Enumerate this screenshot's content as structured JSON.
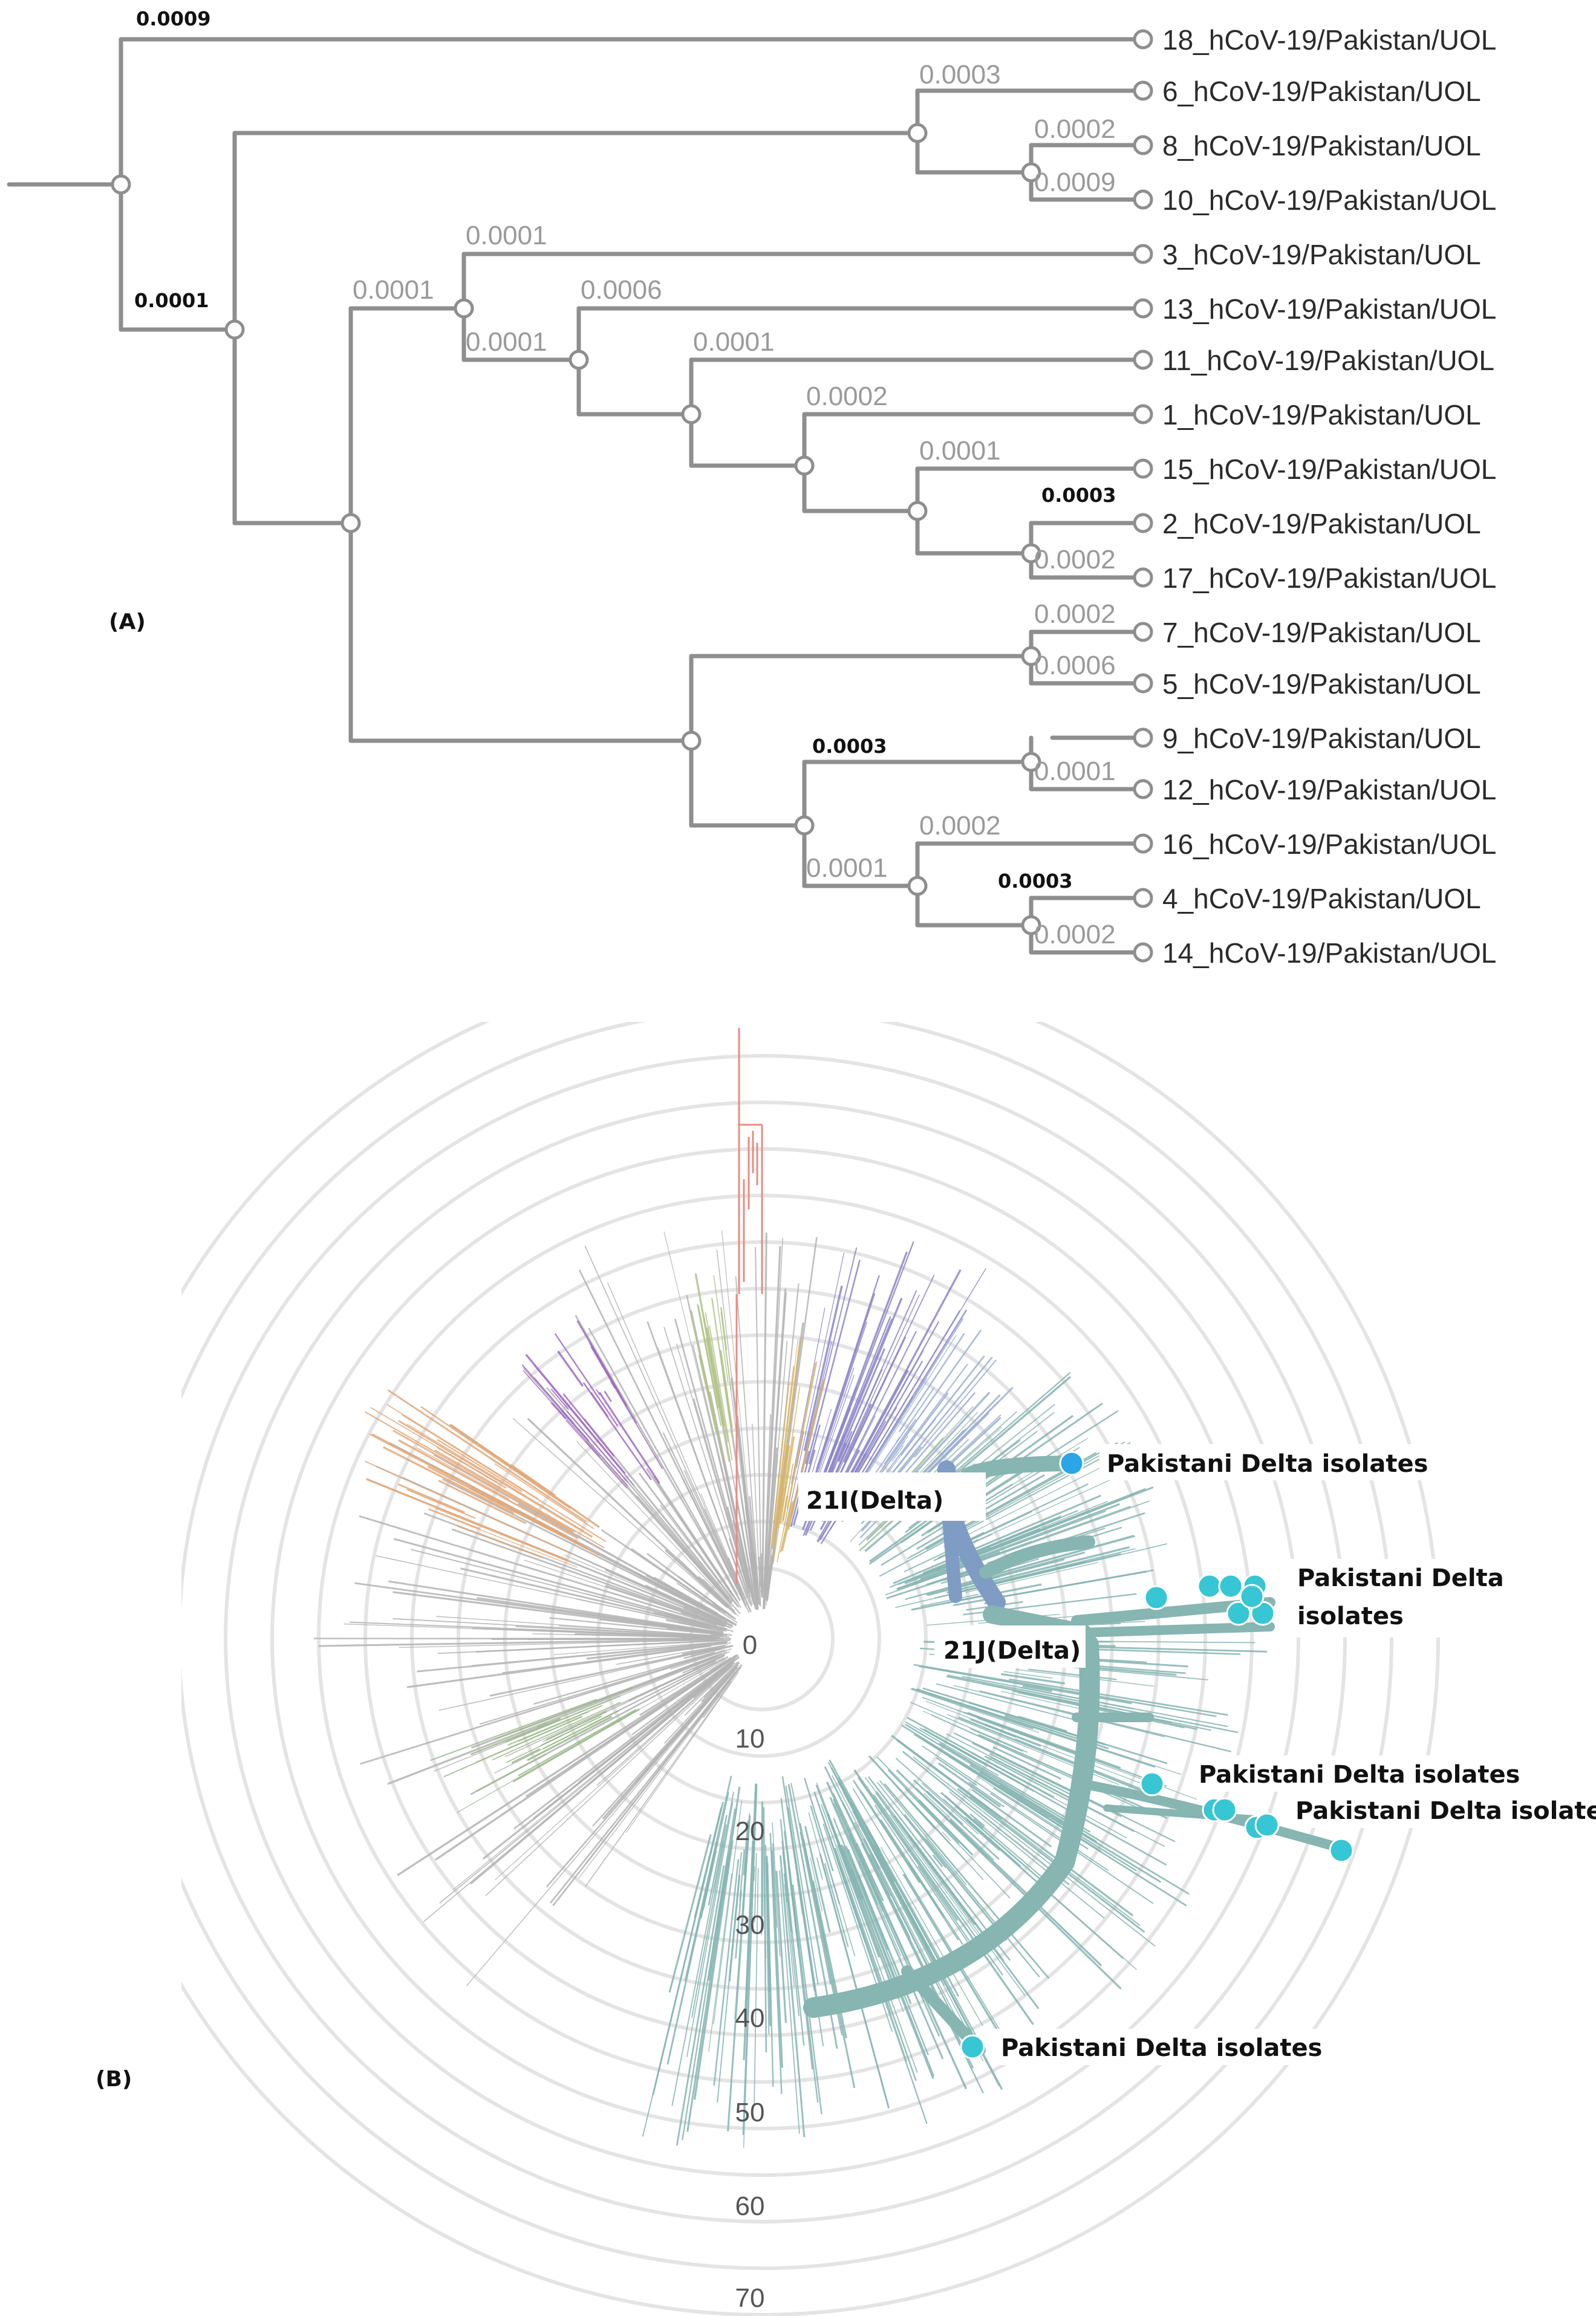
{
  "panel_a": {
    "label": "(A)",
    "tips": [
      "18_hCoV-19/Pakistan/UOL",
      "6_hCoV-19/Pakistan/UOL",
      "8_hCoV-19/Pakistan/UOL",
      "10_hCoV-19/Pakistan/UOL",
      "3_hCoV-19/Pakistan/UOL",
      "13_hCoV-19/Pakistan/UOL",
      "11_hCoV-19/Pakistan/UOL",
      "1_hCoV-19/Pakistan/UOL",
      "15_hCoV-19/Pakistan/UOL",
      "2_hCoV-19/Pakistan/UOL",
      "17_hCoV-19/Pakistan/UOL",
      "7_hCoV-19/Pakistan/UOL",
      "5_hCoV-19/Pakistan/UOL",
      "9_hCoV-19/Pakistan/UOL",
      "12_hCoV-19/Pakistan/UOL",
      "16_hCoV-19/Pakistan/UOL",
      "4_hCoV-19/Pakistan/UOL",
      "14_hCoV-19/Pakistan/UOL"
    ],
    "branch_lengths": {
      "b_root_18": "0.0009",
      "b_root_inner": "0.0001",
      "b_6_8_10": "0.0003",
      "b_8_10": "0.0002",
      "b_10": "0.0009",
      "b_3": "0.0001",
      "b_left_upper": "0.0001",
      "b_13": "0.0006",
      "b_13_group": "0.0001",
      "b_11": "0.0001",
      "b_1": "0.0002",
      "b_15": "0.0001",
      "b_2": "0.0003",
      "b_17": "0.0002",
      "b_7": "0.0002",
      "b_5": "0.0006",
      "b_9_12": "0.0003",
      "b_12": "0.0001",
      "b_16": "0.0002",
      "b_16_group": "0.0001",
      "b_4": "0.0003",
      "b_14": "0.0002"
    }
  },
  "panel_b": {
    "label": "(B)",
    "ring_labels": [
      "0",
      "10",
      "20",
      "30",
      "40",
      "50",
      "60",
      "70"
    ],
    "clades": {
      "delta_21i": "21I(Delta)",
      "delta_21j": "21J(Delta)"
    },
    "annotations": {
      "a1": "Pakistani Delta isolates",
      "a2_line1": "Pakistani Delta",
      "a2_line2": "isolates",
      "a3": "Pakistani Delta isolates",
      "a4": "Pakistani Delta isolates",
      "a5": "Pakistani Delta isolates"
    },
    "colors": {
      "delta_teal": "#86b5b2",
      "delta_21i": "#7f9cc4",
      "isolate_dot": "#36c6d4",
      "ring": "#e4e4e4",
      "gray_branch": "#b3b3b3"
    }
  }
}
